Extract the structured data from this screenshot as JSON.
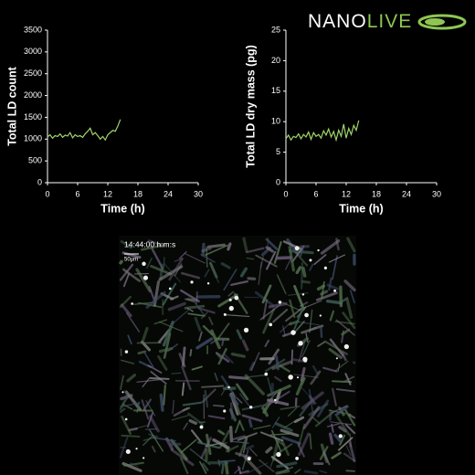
{
  "logo": {
    "first": "NANO",
    "second": "LIVE"
  },
  "image": {
    "timestamp": "14:44:00  h:m:s",
    "scale": "50µm"
  },
  "chart_data": [
    {
      "type": "line",
      "x_label": "Time (h)",
      "y_label": "Total LD count",
      "xlim": [
        0,
        30
      ],
      "xticks": [
        0,
        6,
        12,
        18,
        24,
        30
      ],
      "ylim": [
        0,
        3500
      ],
      "yticks": [
        0,
        500,
        1000,
        1500,
        2000,
        2500,
        3000,
        3500
      ],
      "x": [
        0,
        0.5,
        1,
        1.5,
        2,
        2.5,
        3,
        3.5,
        4,
        4.5,
        5,
        5.5,
        6,
        6.5,
        7,
        7.5,
        8,
        8.5,
        9,
        9.5,
        10,
        10.5,
        11,
        11.5,
        12,
        12.5,
        13,
        13.5,
        14,
        14.5
      ],
      "series": [
        {
          "color": "#9fd36a",
          "values": [
            1050,
            1100,
            1020,
            1080,
            1060,
            1120,
            1040,
            1090,
            1070,
            1150,
            1030,
            1100,
            1060,
            1080,
            1040,
            1120,
            1180,
            1250,
            1100,
            1150,
            1080,
            1000,
            1060,
            980,
            1100,
            1150,
            1200,
            1180,
            1300,
            1450
          ]
        }
      ]
    },
    {
      "type": "line",
      "x_label": "Time (h)",
      "y_label": "Total LD dry mass (pg)",
      "xlim": [
        0,
        30
      ],
      "xticks": [
        0,
        6,
        12,
        18,
        24,
        30
      ],
      "ylim": [
        0,
        25
      ],
      "yticks": [
        0,
        5,
        10,
        15,
        20,
        25
      ],
      "x": [
        0,
        0.5,
        1,
        1.5,
        2,
        2.5,
        3,
        3.5,
        4,
        4.5,
        5,
        5.5,
        6,
        6.5,
        7,
        7.5,
        8,
        8.5,
        9,
        9.5,
        10,
        10.5,
        11,
        11.5,
        12,
        12.5,
        13,
        13.5,
        14,
        14.5
      ],
      "series": [
        {
          "color": "#9fd36a",
          "values": [
            7.2,
            7.8,
            7.0,
            7.6,
            7.4,
            8.0,
            7.2,
            7.9,
            7.5,
            8.3,
            7.1,
            8.2,
            7.6,
            7.9,
            7.3,
            8.5,
            7.8,
            8.8,
            7.5,
            8.4,
            7.0,
            8.6,
            7.6,
            9.6,
            7.3,
            8.9,
            7.9,
            9.4,
            8.6,
            10.2
          ]
        }
      ]
    }
  ]
}
